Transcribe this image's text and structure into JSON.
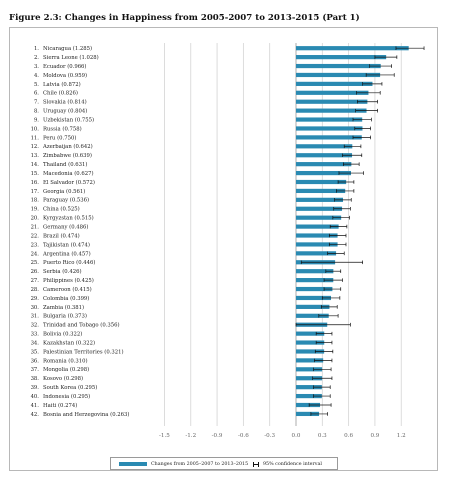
{
  "figure": {
    "title": "Figure 2.3: Changes in Happiness from 2005-2007 to 2013-2015 (Part 1)"
  },
  "legend": {
    "bar_label": "Changes from 2005–2007 to 2013–2015",
    "ci_label": "95% confidence interval"
  },
  "colors": {
    "bar": "#2a8ab2",
    "error_bar": "#111111",
    "gridline": "#d4d4d4",
    "zero_line": "#9a9a9a"
  },
  "chart_data": {
    "type": "bar",
    "orientation": "horizontal",
    "title": "Figure 2.3: Changes in Happiness from 2005-2007 to 2013-2015 (Part 1)",
    "xlim": [
      -1.8,
      1.5
    ],
    "x_ticks": [
      "-1.5",
      "-1.2",
      "-0.9",
      "-0.6",
      "-0.3",
      "0.0",
      "0.3",
      "0.6",
      "0.9",
      "1.2"
    ],
    "x_tick_values": [
      -1.5,
      -1.2,
      -0.9,
      -0.6,
      -0.3,
      0.0,
      0.3,
      0.6,
      0.9,
      1.2
    ],
    "grid": true,
    "legend_position": "bottom",
    "category_labels": [
      "1. Nicaragua (1.285)",
      "2. Sierra Leone (1.028)",
      "3. Ecuador (0.966)",
      "4. Moldova (0.959)",
      "5. Latvia (0.872)",
      "6. Chile (0.826)",
      "7. Slovakia (0.814)",
      "8. Uruguay (0.804)",
      "9. Uzbekistan (0.755)",
      "10. Russia (0.758)",
      "11. Peru (0.750)",
      "12. Azerbaijan (0.642)",
      "13. Zimbabwe (0.639)",
      "14. Thailand (0.631)",
      "15. Macedonia (0.627)",
      "16. El Salvador (0.572)",
      "17. Georgia (0.561)",
      "18. Paraguay (0.536)",
      "19. China (0.525)",
      "20. Kyrgyzstan (0.515)",
      "21. Germany (0.486)",
      "22. Brazil (0.474)",
      "23. Tajikistan (0.474)",
      "24. Argentina (0.457)",
      "25. Puerto Rico (0.446)",
      "26. Serbia (0.426)",
      "27. Philippines (0.425)",
      "28. Cameroon (0.415)",
      "29. Colombia (0.399)",
      "30. Zambia (0.381)",
      "31. Bulgaria (0.373)",
      "32. Trinidad and Tobago (0.356)",
      "33. Bolivia (0.322)",
      "34. Kazakhstan (0.322)",
      "35. Palestinian Territories (0.321)",
      "36. Romania (0.310)",
      "37. Mongolia (0.298)",
      "38. Kosovo (0.298)",
      "39. South Korea (0.295)",
      "40. Indonesia (0.295)",
      "41. Haiti (0.274)",
      "42. Bosnia and Herzegovina (0.263)"
    ],
    "values": [
      1.285,
      1.028,
      0.966,
      0.959,
      0.872,
      0.826,
      0.814,
      0.804,
      0.755,
      0.758,
      0.75,
      0.642,
      0.639,
      0.631,
      0.627,
      0.572,
      0.561,
      0.536,
      0.525,
      0.515,
      0.486,
      0.474,
      0.474,
      0.457,
      0.446,
      0.426,
      0.425,
      0.415,
      0.399,
      0.381,
      0.373,
      0.356,
      0.322,
      0.322,
      0.321,
      0.31,
      0.298,
      0.298,
      0.295,
      0.295,
      0.274,
      0.263
    ],
    "ci_low": [
      1.14,
      0.9,
      0.84,
      0.8,
      0.76,
      0.69,
      0.7,
      0.68,
      0.65,
      0.67,
      0.65,
      0.55,
      0.53,
      0.54,
      0.49,
      0.48,
      0.46,
      0.44,
      0.43,
      0.42,
      0.39,
      0.38,
      0.38,
      0.36,
      0.06,
      0.34,
      0.32,
      0.32,
      0.3,
      0.29,
      0.26,
      0.0,
      0.23,
      0.23,
      0.22,
      0.21,
      0.2,
      0.19,
      0.2,
      0.2,
      0.15,
      0.17
    ],
    "ci_high": [
      1.46,
      1.15,
      1.09,
      1.12,
      0.98,
      0.96,
      0.93,
      0.93,
      0.86,
      0.85,
      0.85,
      0.74,
      0.75,
      0.72,
      0.77,
      0.66,
      0.66,
      0.63,
      0.62,
      0.61,
      0.58,
      0.57,
      0.57,
      0.55,
      0.76,
      0.51,
      0.53,
      0.51,
      0.5,
      0.47,
      0.48,
      0.62,
      0.41,
      0.41,
      0.42,
      0.41,
      0.4,
      0.41,
      0.39,
      0.39,
      0.4,
      0.36
    ],
    "series": [
      {
        "name": "Changes from 2005–2007 to 2013–2015",
        "role": "bar"
      },
      {
        "name": "95% confidence interval",
        "role": "error_bar"
      }
    ]
  }
}
